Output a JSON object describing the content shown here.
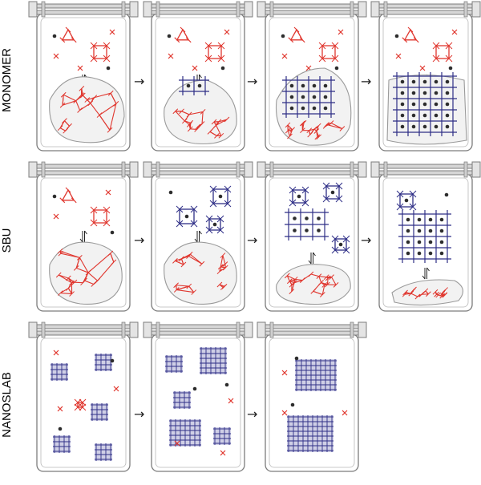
{
  "rows": [
    {
      "label": "MONOMER",
      "panels": 4
    },
    {
      "label": "SBU",
      "panels": 4
    },
    {
      "label": "NANOSLAB",
      "panels": 3
    }
  ],
  "arrow_glyph": "→",
  "colors": {
    "red": "#e0372f",
    "blue": "#2e2e86",
    "dot": "#2d2d2d",
    "frame": "#7c7c7c",
    "blob_fill": "#f2f2f2"
  }
}
